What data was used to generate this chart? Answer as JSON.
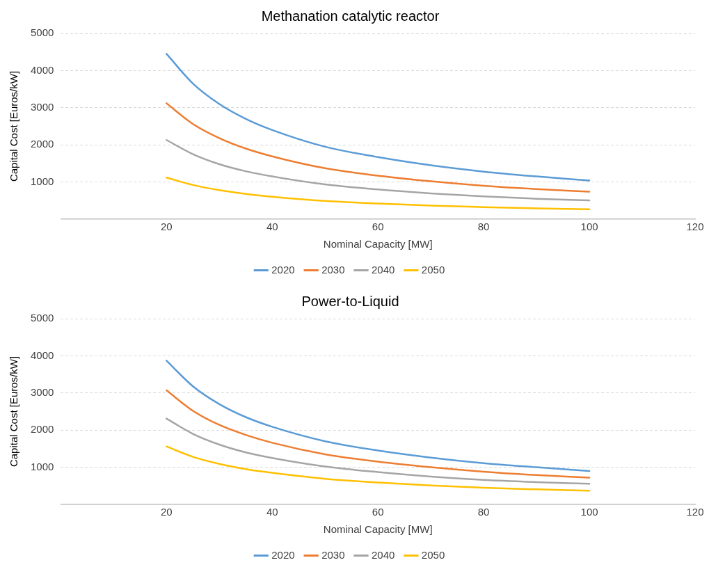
{
  "chart_data": [
    {
      "type": "line",
      "title": "Methanation catalytic reactor",
      "xlabel": "Nominal Capacity [MW]",
      "ylabel": "Capital Cost [Euros/kW]",
      "x": [
        20,
        25,
        30,
        35,
        40,
        50,
        60,
        70,
        80,
        90,
        100
      ],
      "xlim": [
        0,
        120
      ],
      "xticks": [
        20,
        40,
        60,
        80,
        100,
        120
      ],
      "ylim": [
        0,
        5000
      ],
      "yticks": [
        1000,
        2000,
        3000,
        4000,
        5000
      ],
      "grid": "y",
      "legend": "bottom",
      "marker": "none",
      "line_style": "solid",
      "series": [
        {
          "name": "2020",
          "color": "#5b9bd5",
          "values": [
            4450,
            3650,
            3100,
            2700,
            2400,
            1950,
            1670,
            1450,
            1280,
            1150,
            1040
          ]
        },
        {
          "name": "2030",
          "color": "#ed7d31",
          "values": [
            3120,
            2560,
            2180,
            1900,
            1690,
            1370,
            1170,
            1020,
            900,
            810,
            740
          ]
        },
        {
          "name": "2040",
          "color": "#a5a5a5",
          "values": [
            2130,
            1750,
            1480,
            1290,
            1150,
            935,
            800,
            695,
            615,
            550,
            505
          ]
        },
        {
          "name": "2050",
          "color": "#ffc000",
          "values": [
            1120,
            920,
            780,
            680,
            605,
            490,
            420,
            365,
            325,
            290,
            265
          ]
        }
      ]
    },
    {
      "type": "line",
      "title": "Power-to-Liquid",
      "xlabel": "Nominal Capacity [MW]",
      "ylabel": "Capital Cost [Euros/kW]",
      "x": [
        20,
        25,
        30,
        35,
        40,
        50,
        60,
        70,
        80,
        90,
        100
      ],
      "xlim": [
        0,
        120
      ],
      "xticks": [
        20,
        40,
        60,
        80,
        100,
        120
      ],
      "ylim": [
        0,
        5000
      ],
      "yticks": [
        1000,
        2000,
        3000,
        4000,
        5000
      ],
      "grid": "y",
      "legend": "bottom",
      "marker": "none",
      "line_style": "solid",
      "series": [
        {
          "name": "2020",
          "color": "#5b9bd5",
          "values": [
            3870,
            3180,
            2700,
            2350,
            2090,
            1700,
            1450,
            1260,
            1110,
            1000,
            900
          ]
        },
        {
          "name": "2030",
          "color": "#ed7d31",
          "values": [
            3070,
            2520,
            2140,
            1870,
            1660,
            1350,
            1150,
            1000,
            880,
            790,
            720
          ]
        },
        {
          "name": "2040",
          "color": "#a5a5a5",
          "values": [
            2310,
            1900,
            1610,
            1400,
            1250,
            1020,
            870,
            750,
            660,
            600,
            555
          ]
        },
        {
          "name": "2050",
          "color": "#ffc000",
          "values": [
            1560,
            1280,
            1090,
            950,
            850,
            690,
            590,
            510,
            450,
            405,
            370
          ]
        }
      ]
    }
  ]
}
